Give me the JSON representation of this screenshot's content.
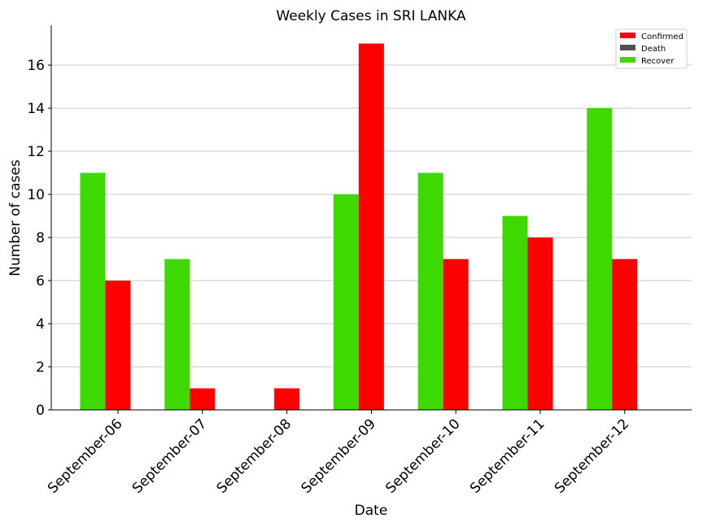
{
  "chart_data": {
    "type": "bar",
    "title": "Weekly Cases in SRI LANKA",
    "xlabel": "Date",
    "ylabel": "Number of cases",
    "categories": [
      "September-06",
      "September-07",
      "September-08",
      "September-09",
      "September-10",
      "September-11",
      "September-12"
    ],
    "series": [
      {
        "name": "Confirmed",
        "color": "#ff0000",
        "values": [
          6,
          1,
          1,
          17,
          7,
          8,
          7
        ]
      },
      {
        "name": "Death",
        "color": "#505050",
        "values": [
          0,
          0,
          0,
          0,
          0,
          0,
          0
        ]
      },
      {
        "name": "Recover",
        "color": "#3dd900",
        "values": [
          11,
          7,
          0,
          10,
          11,
          9,
          14
        ]
      }
    ],
    "ylim": [
      0,
      17.85
    ],
    "yticks": [
      "0",
      "2",
      "4",
      "6",
      "8",
      "10",
      "12",
      "14",
      "16"
    ],
    "grid": "horizontal",
    "legend_position": "top-right"
  }
}
